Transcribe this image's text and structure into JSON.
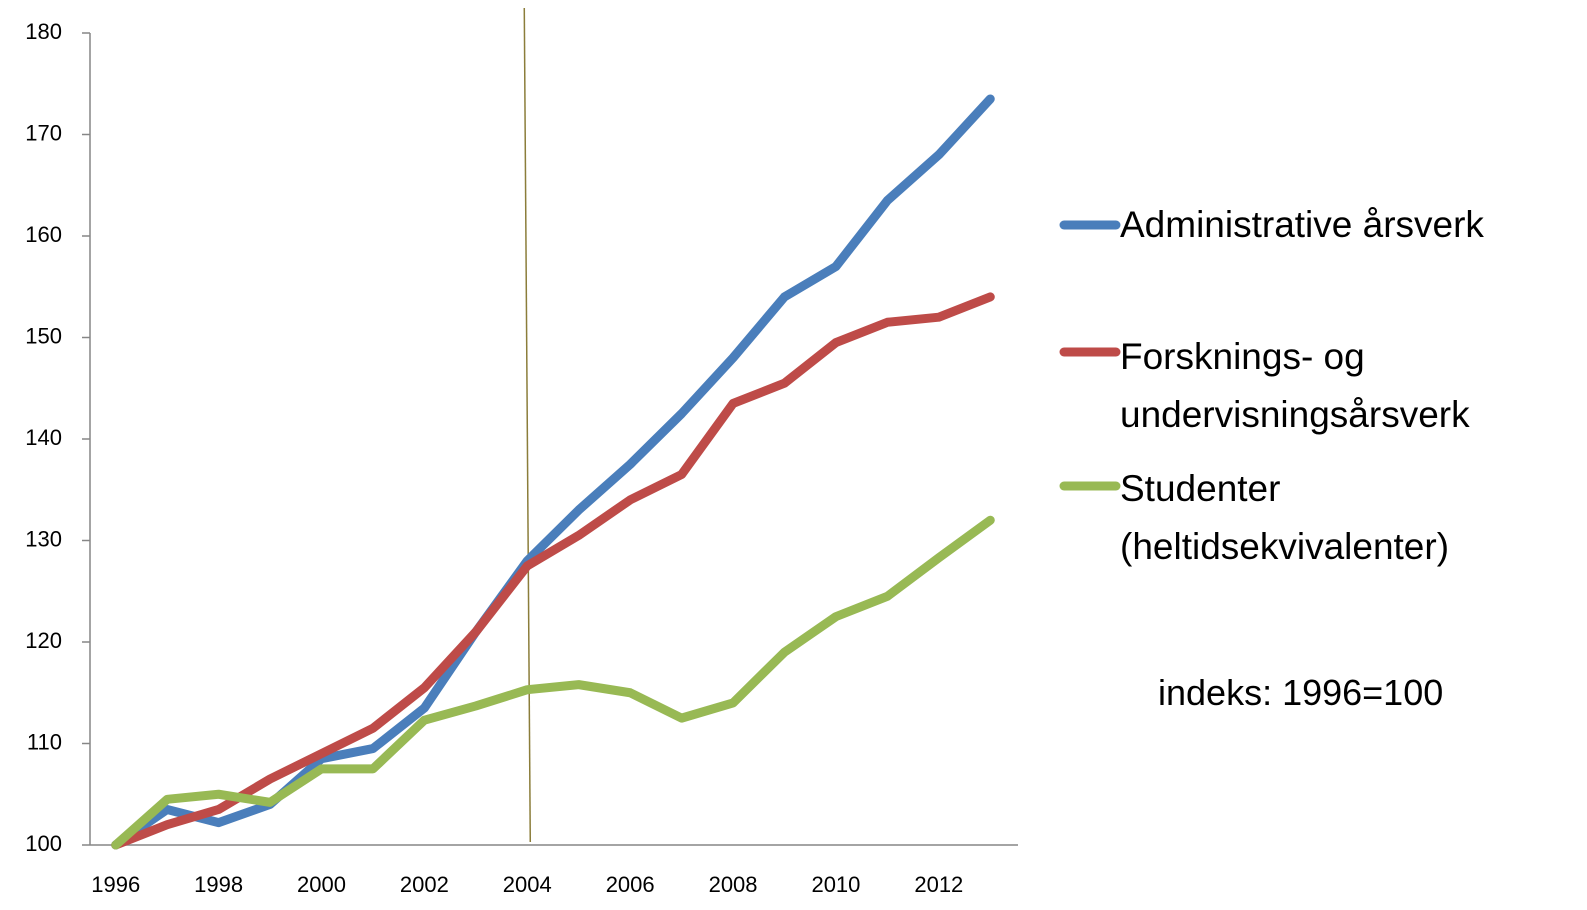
{
  "chart_data": {
    "type": "line",
    "x": [
      1996,
      1997,
      1998,
      1999,
      2000,
      2001,
      2002,
      2003,
      2004,
      2005,
      2006,
      2007,
      2008,
      2009,
      2010,
      2011,
      2012,
      2013
    ],
    "series": [
      {
        "name": "Administrative årsverk",
        "color": "#4a7ebb",
        "values": [
          100,
          103.5,
          102.2,
          104,
          108.5,
          109.5,
          113.5,
          121,
          128,
          133,
          137.5,
          142.5,
          148,
          154,
          157,
          163.5,
          168,
          173.5
        ]
      },
      {
        "name": "Forsknings- og undervisningsårsverk",
        "color": "#be4b48",
        "values": [
          100,
          102,
          103.5,
          106.5,
          109,
          111.5,
          115.5,
          121,
          127.5,
          130.5,
          134,
          136.5,
          143.5,
          145.5,
          149.5,
          151.5,
          152,
          154
        ]
      },
      {
        "name": "Studenter (heltidsekvivalenter)",
        "color": "#98b954",
        "values": [
          100,
          104.5,
          105,
          104.2,
          107.5,
          107.5,
          112.3,
          113.7,
          115.3,
          115.8,
          115,
          112.5,
          114,
          119,
          122.5,
          124.5,
          128.3,
          132
        ]
      }
    ],
    "xlim": [
      1995.5,
      2013.5
    ],
    "xticks": [
      1996,
      1998,
      2000,
      2002,
      2004,
      2006,
      2008,
      2010,
      2012
    ],
    "ylim": [
      100,
      180
    ],
    "yticks": [
      100,
      110,
      120,
      130,
      140,
      150,
      160,
      170,
      180
    ],
    "reference_line_x": 2004,
    "reference_line_color": "#8b7d3a",
    "annotation": "indeks: 1996=100"
  }
}
